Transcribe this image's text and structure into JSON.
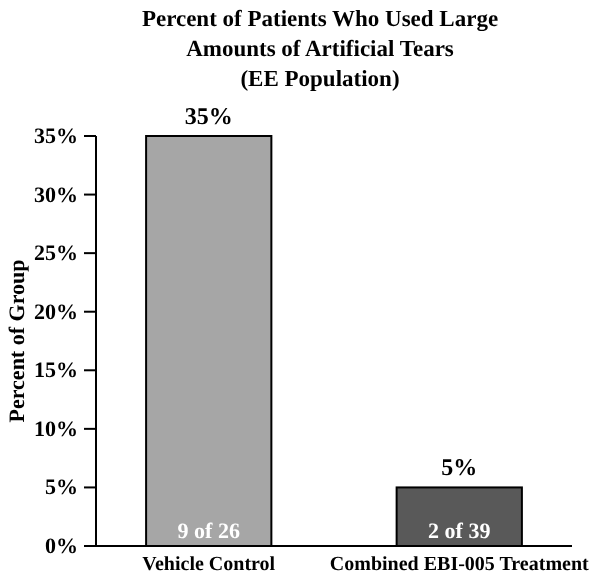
{
  "chart_data": {
    "type": "bar",
    "title": "Percent of Patients Who Used Large\nAmounts of Artificial Tears\n(EE Population)",
    "ylabel": "Percent of Group",
    "categories": [
      "Vehicle Control",
      "Combined EBI-005 Treatment"
    ],
    "values": [
      35,
      5
    ],
    "colors": [
      "#a6a6a6",
      "#595959"
    ],
    "ylim": [
      0,
      35
    ],
    "yticks": [
      {
        "value": 0,
        "label": "0%"
      },
      {
        "value": 5,
        "label": "5%"
      },
      {
        "value": 10,
        "label": "10%"
      },
      {
        "value": 15,
        "label": "15%"
      },
      {
        "value": 20,
        "label": "20%"
      },
      {
        "value": 25,
        "label": "25%"
      },
      {
        "value": 30,
        "label": "30%"
      },
      {
        "value": 35,
        "label": "35%"
      }
    ],
    "value_labels": [
      "35%",
      "5%"
    ],
    "annotations": [
      "9 of 26",
      "2 of 39"
    ],
    "grid": false
  }
}
